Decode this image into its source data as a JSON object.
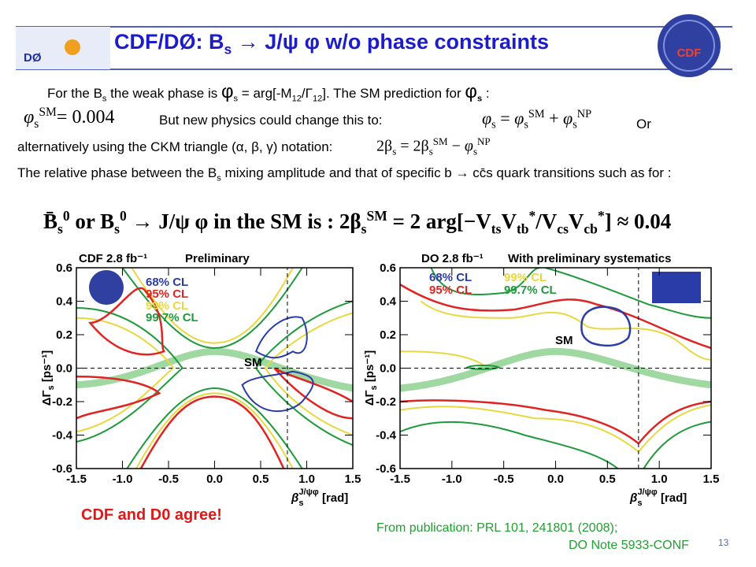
{
  "header": {
    "title": [
      "CDF/DØ: B",
      "s",
      " → J/ψ φ w/o phase constraints"
    ]
  },
  "body": {
    "line1": [
      "For the B",
      "s",
      " the weak phase is ",
      "φ",
      "s",
      " = arg[-M",
      "12",
      "/Γ",
      "12",
      "].  The SM prediction for ",
      "φ",
      "s",
      " :"
    ],
    "eq1": [
      "φ",
      "s",
      "SM",
      "= 0.004"
    ],
    "line2": "But new physics could change this to:",
    "eq2": [
      "φ",
      "s",
      " = ",
      "φ",
      "s",
      "SM",
      " + ",
      "φ",
      "s",
      "NP"
    ],
    "or": "Or",
    "line3": "alternatively using the CKM triangle (α, β, γ) notation:",
    "eq3": [
      "2β",
      "s",
      " = 2β",
      "s",
      "SM",
      " − ",
      "φ",
      "s",
      "NP"
    ],
    "para": [
      "The relative phase between the B",
      "s",
      " mixing amplitude and that of specific  b → cc̄s quark transitions such as for :"
    ],
    "eq4": [
      "B̄",
      "s",
      "0",
      " or B",
      "s",
      "0",
      " → J/ψ φ in the SM is : 2β",
      "s",
      "SM",
      " = 2 arg[−V",
      "ts",
      "V",
      "tb",
      "*",
      "/V",
      "cs",
      "V",
      "cb",
      "*",
      "] ≈ 0.04"
    ]
  },
  "plots": [
    {
      "title": "CDF  2.8 fb⁻¹",
      "subtitle": "Preliminary",
      "ylabel": [
        "ΔΓ",
        "s",
        " [ps⁻¹]"
      ],
      "xlabel": [
        "β",
        "s",
        "J/ψφ",
        " [rad]"
      ],
      "annotation": "SM",
      "xlim": [
        -1.5,
        1.5
      ],
      "ylim": [
        -0.6,
        0.6
      ],
      "xticks": [
        -1.5,
        {
          "value": -1,
          "label": "-1.0"
        },
        -0.5,
        {
          "value": 0,
          "label": "0.0"
        },
        0.5,
        {
          "value": 1,
          "label": "1.0"
        },
        1.5
      ],
      "yticks": [
        -0.6,
        -0.4,
        -0.2,
        {
          "value": 0,
          "label": "0.0"
        },
        0.2,
        0.4,
        0.6
      ],
      "legend": [
        {
          "label": "68% CL",
          "color": "#2a3ca8"
        },
        {
          "label": "95% CL",
          "color": "#e02424"
        },
        {
          "label": "99% CL",
          "color": "#e8d840"
        },
        {
          "label": "99.7% CL",
          "color": "#1e9a3c"
        }
      ]
    },
    {
      "title": "DO  2.8 fb⁻¹",
      "subtitle": "With preliminary systematics",
      "ylabel": [
        "ΔΓ",
        "s",
        " [ps⁻¹]"
      ],
      "xlabel": [
        "β",
        "s",
        "J/ψφ",
        " [rad]"
      ],
      "annotation": "SM",
      "xlim": [
        -1.5,
        1.5
      ],
      "ylim": [
        -0.6,
        0.6
      ],
      "xticks": [
        -1.5,
        {
          "value": -1,
          "label": "-1.0"
        },
        -0.5,
        {
          "value": 0,
          "label": "0.0"
        },
        0.5,
        {
          "value": 1,
          "label": "1.0"
        },
        1.5
      ],
      "yticks": [
        -0.6,
        -0.4,
        -0.2,
        {
          "value": 0,
          "label": "0.0"
        },
        0.2,
        0.4,
        0.6
      ],
      "legend": [
        {
          "label": "68% CL",
          "color": "#2a3ca8"
        },
        {
          "label": "95% CL",
          "color": "#e02424"
        },
        {
          "label": "99% CL",
          "color": "#e8d840"
        },
        {
          "label": "99.7% CL",
          "color": "#1e9a3c"
        }
      ]
    }
  ],
  "footer": {
    "agree": "CDF and D0 agree!",
    "source": [
      "From publication: PRL 101, 241801 (2008);",
      "DO Note 5933-CONF"
    ],
    "page": "13"
  }
}
